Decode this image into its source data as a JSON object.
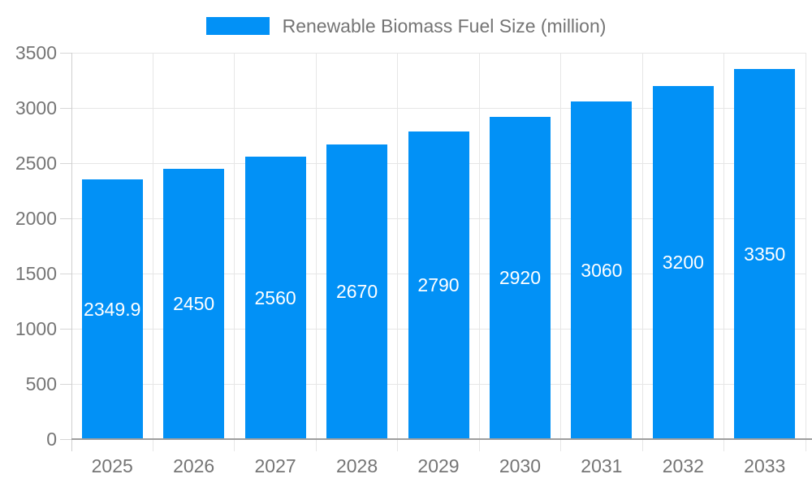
{
  "legend": {
    "series_label": "Renewable Biomass Fuel Size (million)"
  },
  "chart_data": {
    "type": "bar",
    "title": "",
    "series_name": "Renewable Biomass Fuel Size (million)",
    "categories": [
      "2025",
      "2026",
      "2027",
      "2028",
      "2029",
      "2030",
      "2031",
      "2032",
      "2033"
    ],
    "values": [
      2349.9,
      2450,
      2560,
      2670,
      2790,
      2920,
      3060,
      3200,
      3350
    ],
    "bar_labels": [
      "2349.9",
      "2450",
      "2560",
      "2670",
      "2790",
      "2920",
      "3060",
      "3200",
      "3350"
    ],
    "xlabel": "",
    "ylabel": "",
    "ylim": [
      0,
      3500
    ],
    "yticks": [
      0,
      500,
      1000,
      1500,
      2000,
      2500,
      3000,
      3500
    ],
    "grid": true,
    "legend_position": "top",
    "colors": {
      "bar": "#0291F6",
      "bar_label_text": "#FFFFFF",
      "axis_text": "#757575",
      "legend_text": "#757575",
      "grid_line": "#E6E6E6",
      "y_axis_line": "#CFCFCF",
      "x_axis_line": "#9E9E9E",
      "tick_mark": "#D6D6D6",
      "background": "#FFFFFF"
    }
  }
}
